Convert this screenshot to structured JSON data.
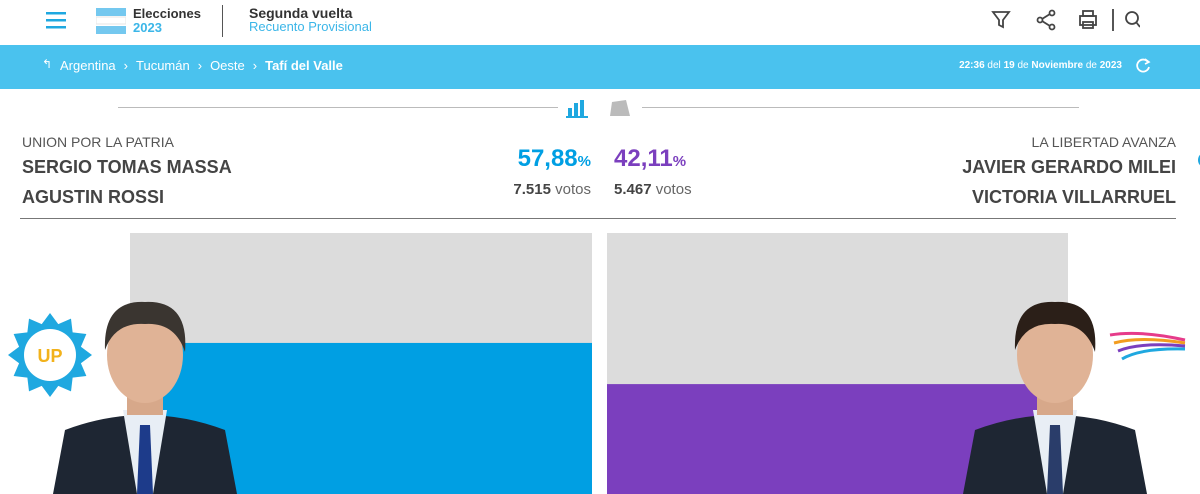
{
  "header": {
    "logo_title": "Elecciones",
    "logo_year": "2023",
    "round": "Segunda vuelta",
    "count_type": "Recuento Provisional"
  },
  "breadcrumb": [
    "Argentina",
    "Tucumán",
    "Oeste",
    "Tafí del Valle"
  ],
  "timestamp": {
    "time": "22:36",
    "of1": "del",
    "day": "19",
    "of2": "de",
    "month": "Noviembre",
    "of3": "de",
    "year": "2023"
  },
  "percent_sign": "%",
  "votes_unit": "votos",
  "candidates": [
    {
      "party": "UNION POR LA PATRIA",
      "president": "SERGIO TOMAS MASSA",
      "vice": "AGUSTIN ROSSI",
      "percent": {
        "value": 57.88,
        "label": "57,88"
      },
      "votes": "7.515",
      "color": "#009fe3",
      "badge": "UP"
    },
    {
      "party": "LA LIBERTAD AVANZA",
      "president": "JAVIER GERARDO MILEI",
      "vice": "VICTORIA VILLARRUEL",
      "percent": {
        "value": 42.11,
        "label": "42,11"
      },
      "votes": "5.467",
      "color": "#7b3fbe"
    }
  ]
}
